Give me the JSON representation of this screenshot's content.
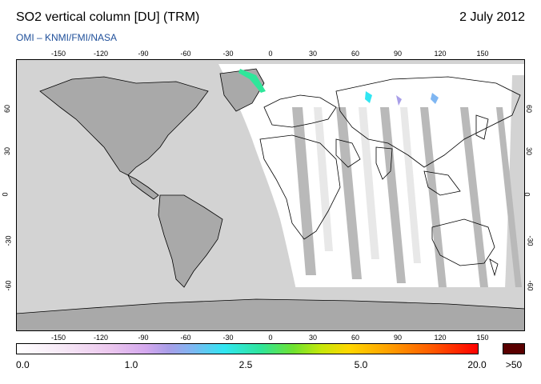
{
  "header": {
    "title": "SO2 vertical column [DU] (TRM)",
    "date": "2 July 2012",
    "credit": "OMI  –  KNMI/FMI/NASA"
  },
  "map": {
    "lon_ticks": [
      "-150",
      "-120",
      "-90",
      "-60",
      "-30",
      "0",
      "30",
      "60",
      "90",
      "120",
      "150"
    ],
    "lat_ticks": [
      "60",
      "30",
      "0",
      "-30",
      "-60"
    ],
    "colors": {
      "land": "#a9a9a9",
      "no_data": "#d3d3d3",
      "data_gap_stripe": "#b9b9b9",
      "valid_background": "#ffffff",
      "coastline": "#000000"
    }
  },
  "colorbar": {
    "labels": [
      "0.0",
      "1.0",
      "2.5",
      "5.0",
      "20.0"
    ],
    "saturation_label": ">50",
    "saturation_color": "#5a0000"
  }
}
